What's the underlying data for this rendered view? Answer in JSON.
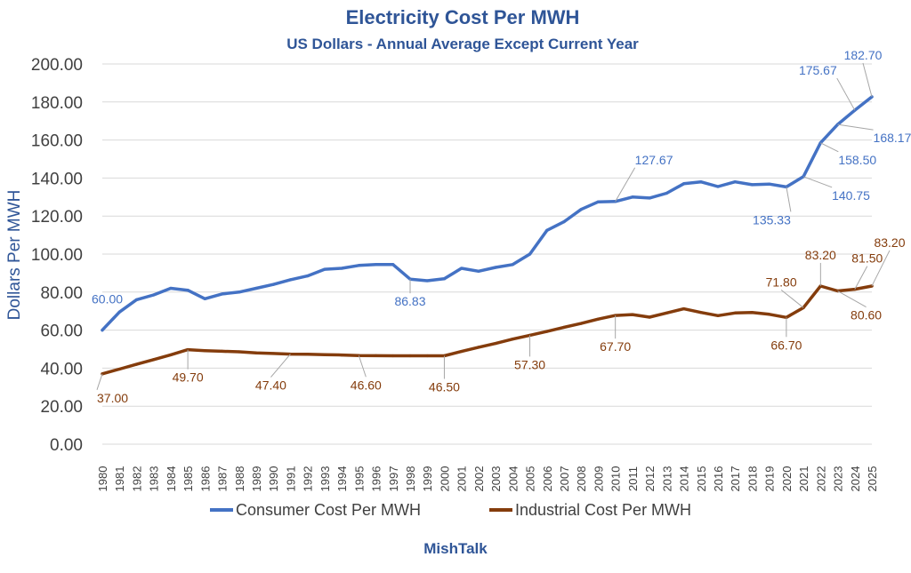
{
  "chart_data": {
    "type": "line",
    "title": "Electricity Cost Per MWH",
    "subtitle": "US Dollars - Annual Average Except Current Year",
    "xlabel": "",
    "ylabel": "Dollars Per MWH",
    "ylim": [
      0,
      200
    ],
    "yticks": [
      "0.00",
      "20.00",
      "40.00",
      "60.00",
      "80.00",
      "100.00",
      "120.00",
      "140.00",
      "160.00",
      "180.00",
      "200.00"
    ],
    "grid": true,
    "legend_position": "bottom",
    "categories": [
      "1980",
      "1981",
      "1982",
      "1983",
      "1984",
      "1985",
      "1986",
      "1987",
      "1988",
      "1989",
      "1990",
      "1991",
      "1992",
      "1993",
      "1994",
      "1995",
      "1996",
      "1997",
      "1998",
      "1999",
      "2000",
      "2001",
      "2002",
      "2003",
      "2004",
      "2005",
      "2006",
      "2007",
      "2008",
      "2009",
      "2010",
      "2011",
      "2012",
      "2013",
      "2014",
      "2015",
      "2016",
      "2017",
      "2018",
      "2019",
      "2020",
      "2021",
      "2022",
      "2023",
      "2024",
      "2025"
    ],
    "series": [
      {
        "name": "Consumer Cost Per MWH",
        "color": "#4472C4",
        "values": [
          60.0,
          69.5,
          76.0,
          78.5,
          82.0,
          81.0,
          76.5,
          79.0,
          80.0,
          82.0,
          84.0,
          86.5,
          88.5,
          92.0,
          92.5,
          94.0,
          94.5,
          94.5,
          86.83,
          86.0,
          87.0,
          92.5,
          91.0,
          93.0,
          94.5,
          100.0,
          112.5,
          117.0,
          123.5,
          127.5,
          127.67,
          130.0,
          129.5,
          132.0,
          137.0,
          138.0,
          135.5,
          138.0,
          136.5,
          136.8,
          135.33,
          140.75,
          158.5,
          168.17,
          175.67,
          182.7
        ]
      },
      {
        "name": "Industrial Cost Per MWH",
        "color": "#843C0C",
        "values": [
          37.0,
          39.5,
          42.0,
          44.5,
          47.0,
          49.7,
          49.2,
          48.9,
          48.6,
          48.0,
          47.7,
          47.4,
          47.3,
          47.1,
          46.9,
          46.6,
          46.55,
          46.5,
          46.5,
          46.5,
          46.5,
          48.8,
          51.0,
          53.0,
          55.3,
          57.3,
          59.3,
          61.5,
          63.5,
          65.8,
          67.7,
          68.2,
          66.8,
          69.0,
          71.2,
          69.3,
          67.6,
          69.0,
          69.3,
          68.3,
          66.7,
          71.8,
          83.2,
          80.6,
          81.5,
          83.2
        ]
      }
    ],
    "annotations": [
      {
        "series": 0,
        "index": 0,
        "text": "60.00",
        "dx": -12,
        "dy": -30,
        "anchor": "start",
        "leader": false
      },
      {
        "series": 0,
        "index": 18,
        "text": "86.83",
        "dx": 0,
        "dy": 30,
        "anchor": "middle",
        "leader": true
      },
      {
        "series": 0,
        "index": 30,
        "text": "127.67",
        "dx": 22,
        "dy": -42,
        "anchor": "start",
        "leader": true
      },
      {
        "series": 0,
        "index": 40,
        "text": "135.33",
        "dx": 5,
        "dy": 42,
        "anchor": "end",
        "leader": true
      },
      {
        "series": 0,
        "index": 41,
        "text": "140.75",
        "dx": 32,
        "dy": 26,
        "anchor": "start",
        "leader": true
      },
      {
        "series": 0,
        "index": 42,
        "text": "158.50",
        "dx": 20,
        "dy": 24,
        "anchor": "start",
        "leader": true
      },
      {
        "series": 0,
        "index": 43,
        "text": "168.17",
        "dx": 40,
        "dy": 20,
        "anchor": "start",
        "leader": true
      },
      {
        "series": 0,
        "index": 44,
        "text": "175.67",
        "dx": -20,
        "dy": -40,
        "anchor": "end",
        "leader": true
      },
      {
        "series": 0,
        "index": 45,
        "text": "182.70",
        "dx": -10,
        "dy": -42,
        "anchor": "middle",
        "leader": true
      },
      {
        "series": 1,
        "index": 0,
        "text": "37.00",
        "dx": -6,
        "dy": 32,
        "anchor": "start",
        "leader": true
      },
      {
        "series": 1,
        "index": 5,
        "text": "49.70",
        "dx": 0,
        "dy": 36,
        "anchor": "middle",
        "leader": true
      },
      {
        "series": 1,
        "index": 11,
        "text": "47.40",
        "dx": -22,
        "dy": 40,
        "anchor": "middle",
        "leader": true
      },
      {
        "series": 1,
        "index": 15,
        "text": "46.60",
        "dx": 8,
        "dy": 38,
        "anchor": "middle",
        "leader": true
      },
      {
        "series": 1,
        "index": 20,
        "text": "46.50",
        "dx": 0,
        "dy": 40,
        "anchor": "middle",
        "leader": true
      },
      {
        "series": 1,
        "index": 25,
        "text": "57.30",
        "dx": 0,
        "dy": 38,
        "anchor": "middle",
        "leader": true
      },
      {
        "series": 1,
        "index": 30,
        "text": "67.70",
        "dx": 0,
        "dy": 40,
        "anchor": "middle",
        "leader": true
      },
      {
        "series": 1,
        "index": 40,
        "text": "66.70",
        "dx": 0,
        "dy": 36,
        "anchor": "middle",
        "leader": true
      },
      {
        "series": 1,
        "index": 41,
        "text": "71.80",
        "dx": -25,
        "dy": -24,
        "anchor": "middle",
        "leader": true
      },
      {
        "series": 1,
        "index": 42,
        "text": "83.20",
        "dx": 0,
        "dy": -30,
        "anchor": "middle",
        "leader": true
      },
      {
        "series": 1,
        "index": 43,
        "text": "80.60",
        "dx": 32,
        "dy": 32,
        "anchor": "middle",
        "leader": true
      },
      {
        "series": 1,
        "index": 44,
        "text": "81.50",
        "dx": 14,
        "dy": -30,
        "anchor": "middle",
        "leader": true
      },
      {
        "series": 1,
        "index": 45,
        "text": "83.20",
        "dx": 20,
        "dy": -44,
        "anchor": "middle",
        "leader": true
      }
    ]
  },
  "footer": "MishTalk"
}
